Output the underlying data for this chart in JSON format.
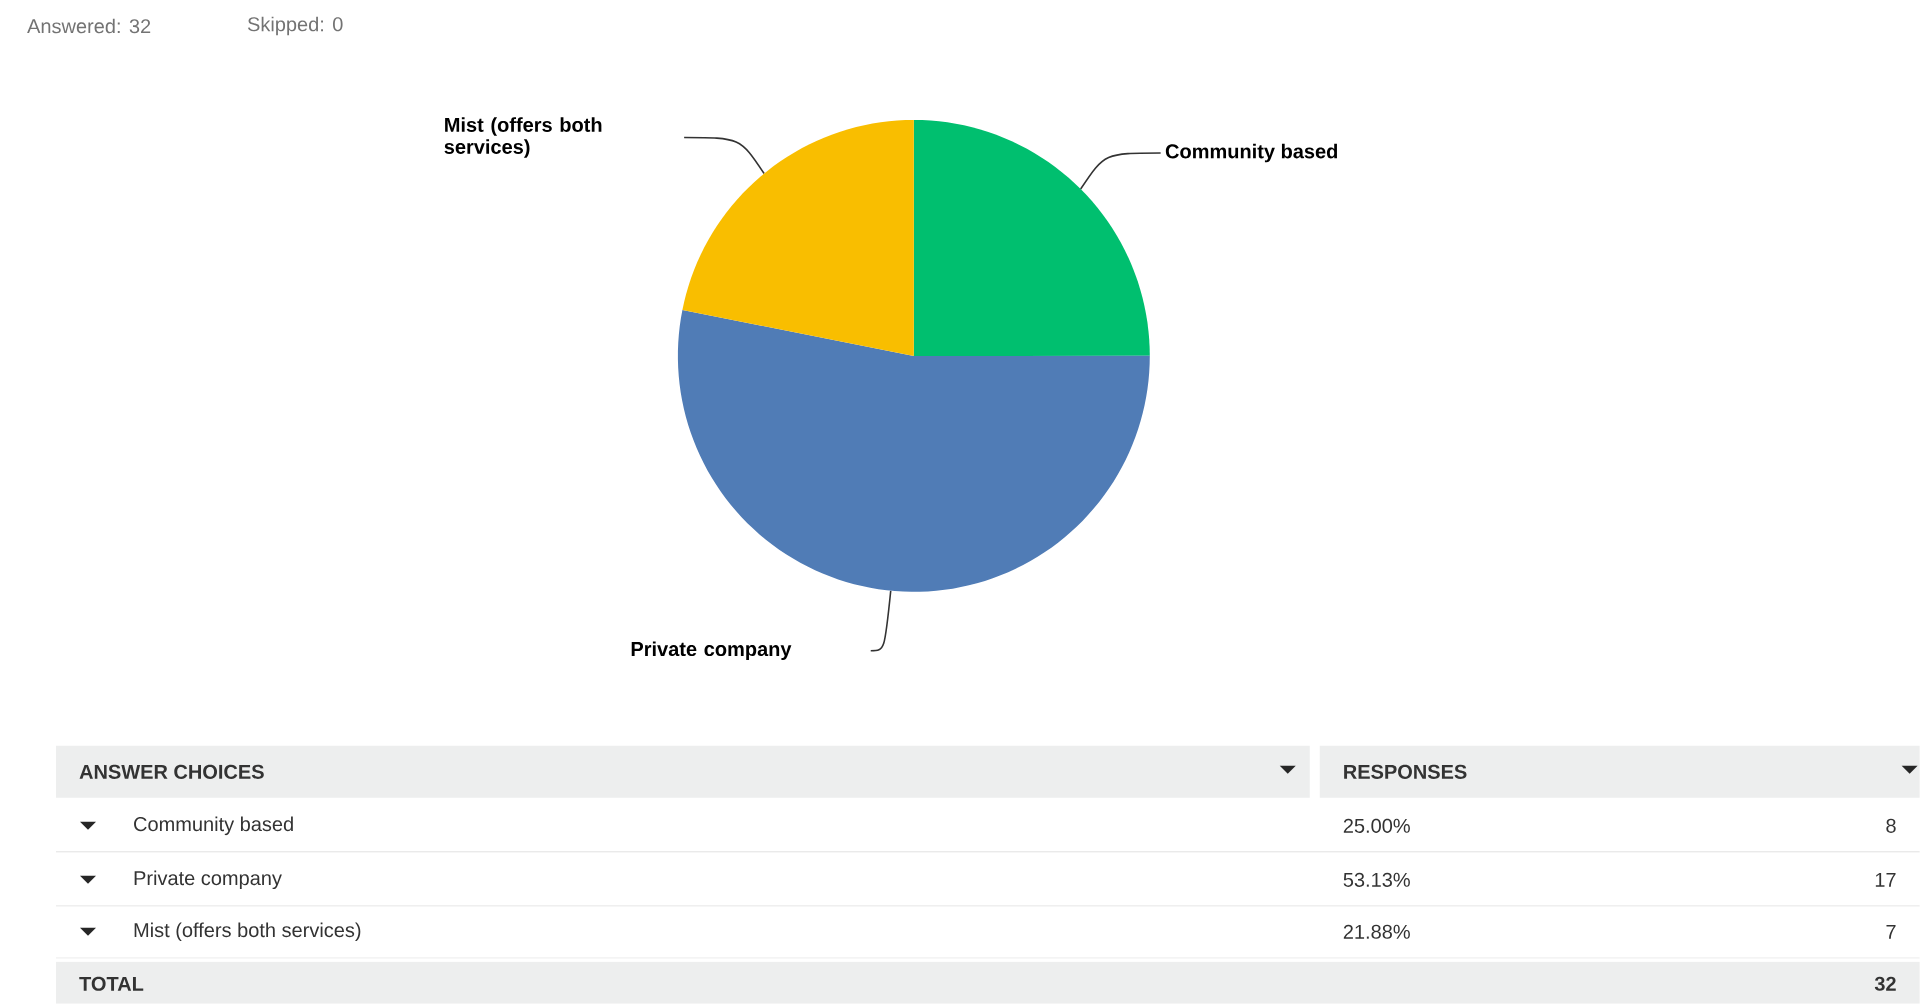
{
  "chart_data": {
    "type": "pie",
    "categories": [
      "Community based",
      "Private company",
      "Mist (offers both services)"
    ],
    "values": [
      25.0,
      53.13,
      21.88
    ],
    "colors": [
      "#00bf6f",
      "#507cb6",
      "#f9be00"
    ],
    "annotations": [
      "Answered: 32",
      "Skipped: 0",
      "ANSWER CHOICES",
      "RESPONSES",
      "25.00%",
      "53.13%",
      "21.88%",
      "TOTAL",
      "32",
      "8",
      "17",
      "7"
    ]
  }
}
